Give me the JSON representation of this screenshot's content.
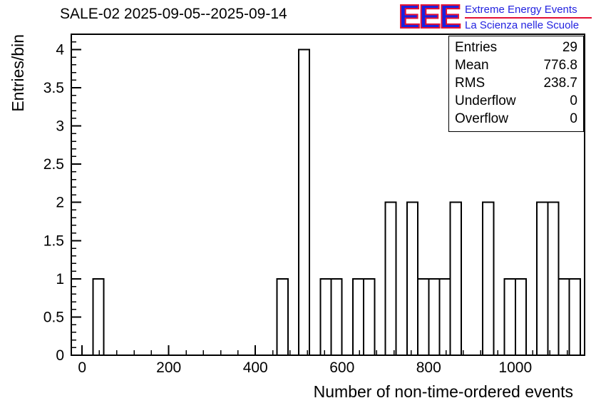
{
  "page": {
    "background": "#ffffff"
  },
  "logo": {
    "text": "EEE",
    "line1": "Extreme Energy Events",
    "line2": "La Scienza nelle Scuole",
    "blue": "#2323e0",
    "red": "#e41135"
  },
  "chart_data": {
    "type": "bar",
    "title": "SALE-02 2025-09-05--2025-09-14",
    "xlabel": "Number of non-time-ordered events",
    "ylabel": "Entries/bin",
    "xlim": [
      -25,
      1160
    ],
    "ylim": [
      0,
      4.2
    ],
    "x_ticks": [
      0,
      200,
      400,
      600,
      800,
      1000
    ],
    "x_minor_step": 40,
    "y_ticks": [
      0,
      0.5,
      1,
      1.5,
      2,
      2.5,
      3,
      3.5,
      4
    ],
    "y_minor_step": 0.1,
    "grid": false,
    "legend": "none",
    "bin_width": 25,
    "bins": [
      [
        25,
        1
      ],
      [
        450,
        1
      ],
      [
        500,
        4
      ],
      [
        550,
        1
      ],
      [
        575,
        1
      ],
      [
        625,
        1
      ],
      [
        650,
        1
      ],
      [
        700,
        2
      ],
      [
        750,
        2
      ],
      [
        775,
        1
      ],
      [
        800,
        1
      ],
      [
        825,
        1
      ],
      [
        850,
        2
      ],
      [
        925,
        2
      ],
      [
        975,
        1
      ],
      [
        1000,
        1
      ],
      [
        1050,
        2
      ],
      [
        1075,
        2
      ],
      [
        1100,
        1
      ],
      [
        1125,
        1
      ]
    ],
    "bar_style": {
      "stroke": "#000000",
      "fill": "none",
      "stroke_width": 2
    },
    "frame_color": "#000000",
    "stats_rows": [
      {
        "label": "Entries",
        "value": "29"
      },
      {
        "label": "Mean",
        "value": "776.8"
      },
      {
        "label": "RMS",
        "value": "238.7"
      },
      {
        "label": "Underflow",
        "value": "0"
      },
      {
        "label": "Overflow",
        "value": "0"
      }
    ]
  }
}
